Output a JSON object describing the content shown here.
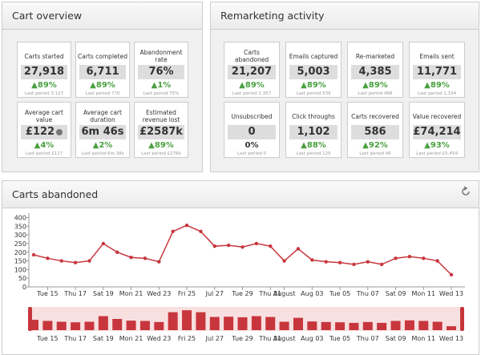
{
  "panels": [
    {
      "title": "Cart overview",
      "cards": [
        {
          "label": "Carts started",
          "value": "27,918",
          "change": "▲89%",
          "previous": "Last period 3,127"
        },
        {
          "label": "Carts completed",
          "value": "6,711",
          "change": "▲89%",
          "previous": "Last period 770"
        },
        {
          "label": "Abandonment rate",
          "value": "76%",
          "change": "▲1%",
          "previous": "Last period 75%"
        },
        {
          "label": "Average cart value",
          "value": "£122",
          "change": "▲4%",
          "previous": "Last period £117"
        },
        {
          "label": "Average cart duration",
          "value": "6m 46s",
          "change": "▲2%",
          "previous": "Last period 6m 38s"
        },
        {
          "label": "Estimated revenue lost",
          "value": "£2587k",
          "change": "▲89%",
          "previous": "Last period £276k"
        }
      ]
    },
    {
      "title": "Remarketing activity",
      "cards": [
        {
          "label": "Carts abandoned",
          "value": "21,207",
          "change": "▲89%",
          "previous": "Last period 2,357"
        },
        {
          "label": "Emails captured",
          "value": "5,003",
          "change": "▲89%",
          "previous": "Last period 539"
        },
        {
          "label": "Re-marketed",
          "value": "4,385",
          "change": "▲89%",
          "previous": "Last period 468"
        },
        {
          "label": "Emails sent",
          "value": "11,771",
          "change": "▲89%",
          "previous": "Last period 1,334"
        },
        {
          "label": "Unsubscribed",
          "value": "0",
          "change": "0%",
          "previous": "Last period 0"
        },
        {
          "label": "Click throughs",
          "value": "1,102",
          "change": "▲88%",
          "previous": "Last period 125"
        },
        {
          "label": "Carts recovered",
          "value": "586",
          "change": "▲92%",
          "previous": "Last period 46"
        },
        {
          "label": "Value recovered",
          "value": "£74,214",
          "change": "▲93%",
          "previous": "Last period £5,459"
        }
      ]
    }
  ],
  "chart": {
    "type": "line",
    "title": "Carts abandoned",
    "color": "#c8363d",
    "categories": [
      null,
      "Tue 15",
      null,
      "Thu 17",
      null,
      "Sat 19",
      null,
      "Mon 21",
      null,
      "Wed 23",
      null,
      "Fri 25",
      null,
      "Jul 27",
      null,
      "Tue 29",
      null,
      "Thu 31",
      "August",
      null,
      "Aug 03",
      null,
      "Tue 05",
      null,
      "Thu 07",
      null,
      "Sat 09",
      null,
      "Mon 11",
      null,
      "Wed 13"
    ],
    "values": [
      185,
      165,
      150,
      140,
      150,
      250,
      200,
      170,
      165,
      145,
      320,
      355,
      320,
      235,
      240,
      230,
      250,
      235,
      150,
      220,
      155,
      145,
      140,
      130,
      145,
      130,
      165,
      175,
      165,
      150,
      70
    ],
    "ylim": [
      0,
      400
    ],
    "yticks": [
      0,
      50,
      100,
      150,
      200,
      250,
      300,
      350,
      400
    ]
  }
}
